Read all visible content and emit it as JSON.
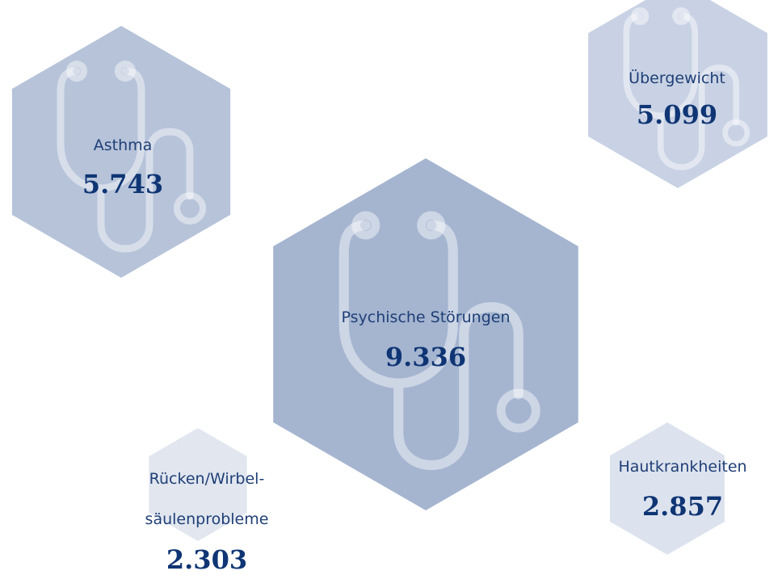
{
  "chart_data": {
    "type": "hexagon",
    "categories": [
      "Asthma",
      "Übergewicht",
      "Psychische Störungen",
      "Rücken/Wirbel-\nsäulenprobleme",
      "Hautkrankheiten"
    ],
    "values": [
      5743,
      5099,
      9336,
      2303,
      2857
    ],
    "value_labels": [
      "5.743",
      "5.099",
      "9.336",
      "2.303",
      "2.857"
    ],
    "colors": [
      "#b6c3d9",
      "#c8d2e4",
      "#a5b5d0",
      "#e1e6ef",
      "#dde3ee"
    ]
  }
}
